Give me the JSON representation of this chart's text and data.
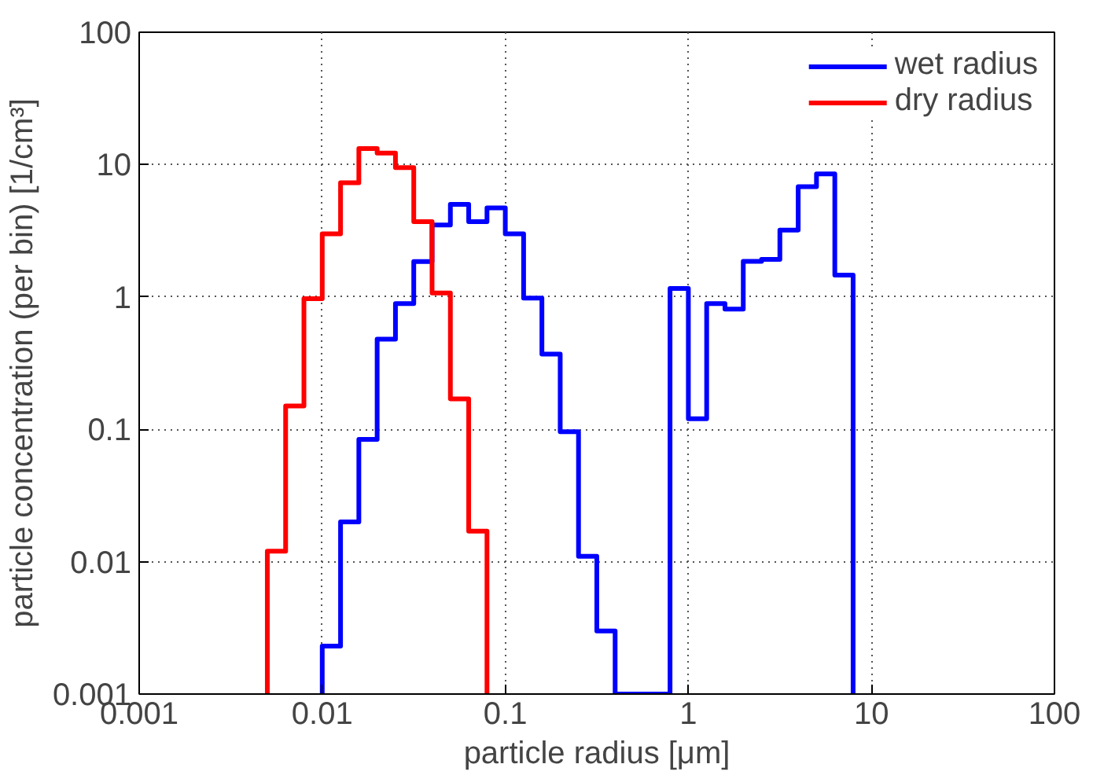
{
  "chart_data": {
    "type": "step",
    "xlabel": "particle radius [μm]",
    "ylabel": "particle concentration (per bin) [1/cm³]",
    "log": "xy",
    "xlim": [
      0.001,
      100
    ],
    "ylim": [
      0.001,
      100
    ],
    "xticks": [
      0.001,
      0.01,
      0.1,
      1,
      10,
      100
    ],
    "yticks": [
      0.001,
      0.01,
      0.1,
      1,
      10,
      100
    ],
    "grid": true,
    "legend": "top right",
    "line_style": "solid",
    "series": [
      {
        "name": "wet radius",
        "color": "#0000ff",
        "x": [
          0.01,
          0.01,
          0.01259,
          0.01585,
          0.01995,
          0.02512,
          0.03162,
          0.03981,
          0.05012,
          0.0631,
          0.07943,
          0.1,
          0.1259,
          0.1585,
          0.1995,
          0.2512,
          0.3162,
          0.3981,
          0.5012,
          0.631,
          0.7943,
          1,
          1.259,
          1.585,
          1.995,
          2.512,
          3.162,
          3.981,
          5.012,
          6.31,
          7.943
        ],
        "values": [
          0.001,
          0.0023,
          0.02,
          0.084,
          0.48,
          0.89,
          1.85,
          3.5,
          5,
          3.7,
          4.7,
          3,
          0.98,
          0.37,
          0.096,
          0.011,
          0.003,
          0.001,
          0.001,
          0.001,
          1.16,
          0.12,
          0.89,
          0.81,
          1.86,
          1.92,
          3.2,
          6.8,
          8.5,
          1.46,
          0.001
        ]
      },
      {
        "name": "dry radius",
        "color": "#ff0000",
        "x": [
          0.005012,
          0.005012,
          0.00631,
          0.007943,
          0.01,
          0.01259,
          0.01585,
          0.01995,
          0.02512,
          0.03162,
          0.03981,
          0.05012,
          0.0631,
          0.07943
        ],
        "values": [
          0.001,
          0.012,
          0.15,
          0.97,
          3,
          7.3,
          13.2,
          12.2,
          9.5,
          3.7,
          1.07,
          0.17,
          0.017,
          0.001
        ]
      }
    ]
  }
}
